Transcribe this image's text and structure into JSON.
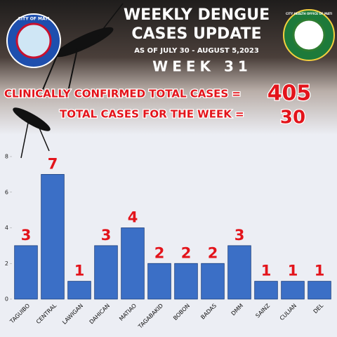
{
  "header": {
    "title_line1": "WEEKLY DENGUE",
    "title_line2": "CASES UPDATE",
    "date_range": "AS OF JULY 30 - AUGUST 5,2023",
    "week": "WEEK 31",
    "left_logo": "CITY OF MATI",
    "right_logo": "CITY HEALTH OFFICE OF MATI"
  },
  "summary": {
    "total_label": "CLINICALLY CONFIRMED TOTAL CASES =",
    "total_value": 405,
    "week_label": "TOTAL CASES FOR THE WEEK =",
    "week_value": 30
  },
  "chart_data": {
    "type": "bar",
    "categories": [
      "TAGUIBO",
      "CENTRAL",
      "LAWIGAN",
      "DAHICAN",
      "MATIAO",
      "TAGABAKID",
      "BOBON",
      "BADAS",
      "DMM",
      "SAINZ",
      "CULIAN",
      "DEL"
    ],
    "values": [
      3,
      7,
      1,
      3,
      4,
      2,
      2,
      2,
      3,
      1,
      1,
      1
    ],
    "color": "#3b6fc6",
    "ylim": [
      0,
      8
    ],
    "yticks": [
      0,
      2,
      4,
      6,
      8
    ]
  }
}
